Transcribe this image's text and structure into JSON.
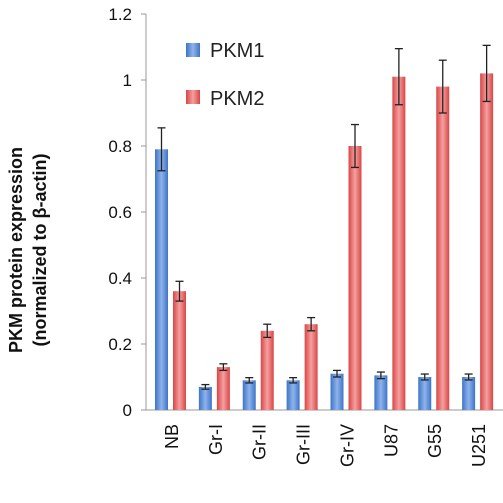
{
  "chart_data": {
    "type": "bar",
    "title": "",
    "xlabel": "",
    "ylabel_line1": "PKM protein expression",
    "ylabel_line2": "(normalized to β-actin)",
    "ylim": [
      0,
      1.2
    ],
    "yticks": [
      0,
      0.2,
      0.4,
      0.6,
      0.8,
      1,
      1.2
    ],
    "ytick_labels": [
      "0",
      "0.2",
      "0.4",
      "0.6",
      "0.8",
      "1",
      "1.2"
    ],
    "categories": [
      "NB",
      "Gr-I",
      "Gr-II",
      "Gr-III",
      "Gr-IV",
      "U87",
      "G55",
      "U251"
    ],
    "legend_position": "top-left",
    "grid": false,
    "series": [
      {
        "name": "PKM1",
        "color": "#4f86d6",
        "values": [
          0.79,
          0.07,
          0.09,
          0.09,
          0.11,
          0.105,
          0.1,
          0.1
        ],
        "errors": [
          0.065,
          0.007,
          0.008,
          0.008,
          0.01,
          0.01,
          0.009,
          0.009
        ]
      },
      {
        "name": "PKM2",
        "color": "#e05a5a",
        "values": [
          0.36,
          0.13,
          0.24,
          0.26,
          0.8,
          1.01,
          0.98,
          1.02
        ],
        "errors": [
          0.03,
          0.01,
          0.02,
          0.02,
          0.065,
          0.085,
          0.08,
          0.085
        ]
      }
    ]
  }
}
